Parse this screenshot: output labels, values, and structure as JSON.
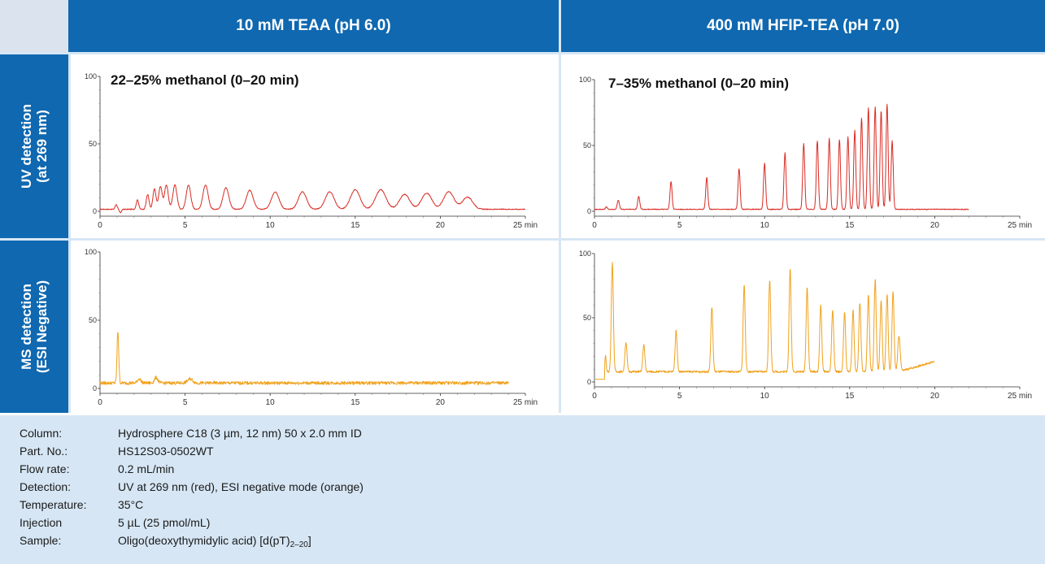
{
  "columns": [
    "10 mM TEAA (pH 6.0)",
    "400 mM HFIP-TEA (pH 7.0)"
  ],
  "rows": [
    {
      "line1": "UV detection",
      "line2": "(at 269 nm)"
    },
    {
      "line1": "MS detection",
      "line2": "(ESI Negative)"
    }
  ],
  "colors": {
    "uv": "#d92b23",
    "ms": "#f0a21d",
    "header_bg": "#0f68b0",
    "panel_frame": "#d6e6f4"
  },
  "chart_data": [
    {
      "id": "uv-teaa",
      "type": "line",
      "title": "22–25% methanol (0–20 min)",
      "xlim": [
        0,
        25
      ],
      "ylim": [
        0,
        100
      ],
      "xticks": [
        "0",
        "5",
        "10",
        "15",
        "20",
        "25 min"
      ],
      "yticks": [
        "0",
        "50",
        "100"
      ],
      "color": "uv",
      "x_end": 25,
      "baseline": 1.5,
      "noise": 0.3,
      "peaks": [
        {
          "t": 0.95,
          "h": 3.5,
          "w": 0.06
        },
        {
          "t": 1.2,
          "h": -2.5,
          "w": 0.06
        },
        {
          "t": 2.2,
          "h": 7,
          "w": 0.07
        },
        {
          "t": 2.8,
          "h": 11,
          "w": 0.08
        },
        {
          "t": 3.2,
          "h": 15,
          "w": 0.09
        },
        {
          "t": 3.55,
          "h": 17,
          "w": 0.1
        },
        {
          "t": 3.9,
          "h": 18,
          "w": 0.11
        },
        {
          "t": 4.4,
          "h": 18,
          "w": 0.12
        },
        {
          "t": 5.2,
          "h": 18,
          "w": 0.13
        },
        {
          "t": 6.2,
          "h": 18,
          "w": 0.15
        },
        {
          "t": 7.4,
          "h": 16,
          "w": 0.17
        },
        {
          "t": 8.8,
          "h": 14,
          "w": 0.2
        },
        {
          "t": 10.3,
          "h": 13,
          "w": 0.22
        },
        {
          "t": 11.9,
          "h": 13,
          "w": 0.24
        },
        {
          "t": 13.5,
          "h": 13,
          "w": 0.26
        },
        {
          "t": 15.0,
          "h": 14.5,
          "w": 0.28
        },
        {
          "t": 16.5,
          "h": 14.5,
          "w": 0.3
        },
        {
          "t": 17.9,
          "h": 11,
          "w": 0.3
        },
        {
          "t": 19.2,
          "h": 12,
          "w": 0.3
        },
        {
          "t": 20.5,
          "h": 13,
          "w": 0.3
        },
        {
          "t": 21.6,
          "h": 9,
          "w": 0.3
        }
      ]
    },
    {
      "id": "uv-hfip",
      "type": "line",
      "title": "7–35% methanol (0–20 min)",
      "xlim": [
        0,
        25
      ],
      "ylim": [
        0,
        100
      ],
      "xticks": [
        "0",
        "5",
        "10",
        "15",
        "20",
        "25 min"
      ],
      "yticks": [
        "0",
        "50",
        "100"
      ],
      "color": "uv",
      "x_end": 22,
      "baseline": 1.5,
      "noise": 0.3,
      "peaks": [
        {
          "t": 0.7,
          "h": 2,
          "w": 0.05
        },
        {
          "t": 1.4,
          "h": 7,
          "w": 0.06
        },
        {
          "t": 2.6,
          "h": 10,
          "w": 0.06
        },
        {
          "t": 4.5,
          "h": 21,
          "w": 0.06
        },
        {
          "t": 6.6,
          "h": 24,
          "w": 0.06
        },
        {
          "t": 8.5,
          "h": 31,
          "w": 0.06
        },
        {
          "t": 10.0,
          "h": 35,
          "w": 0.06
        },
        {
          "t": 11.2,
          "h": 43,
          "w": 0.06
        },
        {
          "t": 12.3,
          "h": 50,
          "w": 0.06
        },
        {
          "t": 13.1,
          "h": 52,
          "w": 0.06
        },
        {
          "t": 13.8,
          "h": 54,
          "w": 0.06
        },
        {
          "t": 14.4,
          "h": 53,
          "w": 0.06
        },
        {
          "t": 14.9,
          "h": 55,
          "w": 0.06
        },
        {
          "t": 15.3,
          "h": 60,
          "w": 0.06
        },
        {
          "t": 15.7,
          "h": 69,
          "w": 0.06
        },
        {
          "t": 16.1,
          "h": 77,
          "w": 0.06
        },
        {
          "t": 16.5,
          "h": 78,
          "w": 0.06
        },
        {
          "t": 16.85,
          "h": 75,
          "w": 0.06
        },
        {
          "t": 17.2,
          "h": 80,
          "w": 0.06
        },
        {
          "t": 17.5,
          "h": 52,
          "w": 0.06
        }
      ]
    },
    {
      "id": "ms-teaa",
      "type": "line",
      "title": "",
      "xlim": [
        0,
        25
      ],
      "ylim": [
        0,
        100
      ],
      "xticks": [
        "0",
        "5",
        "10",
        "15",
        "20",
        "25 min"
      ],
      "yticks": [
        "0",
        "50",
        "100"
      ],
      "color": "ms",
      "x_end": 24,
      "baseline": 4,
      "noise": 1.2,
      "peaks": [
        {
          "t": 1.05,
          "h": 38,
          "w": 0.05
        },
        {
          "t": 2.3,
          "h": 3,
          "w": 0.1
        },
        {
          "t": 3.3,
          "h": 4,
          "w": 0.1
        },
        {
          "t": 5.3,
          "h": 3,
          "w": 0.15
        }
      ]
    },
    {
      "id": "ms-hfip",
      "type": "line",
      "title": "",
      "xlim": [
        0,
        25
      ],
      "ylim": [
        0,
        100
      ],
      "xticks": [
        "0",
        "5",
        "10",
        "15",
        "20",
        "25 min"
      ],
      "yticks": [
        "0",
        "50",
        "100"
      ],
      "color": "ms",
      "x_end": 20,
      "baseline": 8,
      "noise": 0.8,
      "tail_rise": [
        17.9,
        20,
        18
      ],
      "peaks": [
        {
          "t": 0.65,
          "h": 12,
          "w": 0.04
        },
        {
          "t": 1.05,
          "h": 85,
          "w": 0.06
        },
        {
          "t": 1.85,
          "h": 23,
          "w": 0.06
        },
        {
          "t": 2.9,
          "h": 21,
          "w": 0.06
        },
        {
          "t": 4.8,
          "h": 32,
          "w": 0.06
        },
        {
          "t": 6.9,
          "h": 50,
          "w": 0.06
        },
        {
          "t": 8.8,
          "h": 68,
          "w": 0.06
        },
        {
          "t": 10.3,
          "h": 72,
          "w": 0.06
        },
        {
          "t": 11.5,
          "h": 80,
          "w": 0.06
        },
        {
          "t": 12.5,
          "h": 66,
          "w": 0.06
        },
        {
          "t": 13.3,
          "h": 52,
          "w": 0.06
        },
        {
          "t": 14.0,
          "h": 48,
          "w": 0.06
        },
        {
          "t": 14.7,
          "h": 46,
          "w": 0.06
        },
        {
          "t": 15.2,
          "h": 48,
          "w": 0.06
        },
        {
          "t": 15.6,
          "h": 54,
          "w": 0.06
        },
        {
          "t": 16.1,
          "h": 60,
          "w": 0.06
        },
        {
          "t": 16.5,
          "h": 72,
          "w": 0.06
        },
        {
          "t": 16.85,
          "h": 55,
          "w": 0.06
        },
        {
          "t": 17.2,
          "h": 60,
          "w": 0.06
        },
        {
          "t": 17.55,
          "h": 62,
          "w": 0.06
        },
        {
          "t": 17.9,
          "h": 28,
          "w": 0.07
        }
      ]
    }
  ],
  "info": [
    {
      "label": "Column:",
      "value": "Hydrosphere C18 (3 µm, 12 nm) 50 x 2.0 mm ID"
    },
    {
      "label": "Part. No.:",
      "value": "HS12S03-0502WT"
    },
    {
      "label": "Flow rate:",
      "value": "0.2 mL/min"
    },
    {
      "label": "Detection:",
      "value": "UV at 269 nm (red), ESI negative mode (orange)"
    },
    {
      "label": "Temperature:",
      "value": "35°C"
    },
    {
      "label": "Injection",
      "value": "5 µL (25 pmol/mL)"
    },
    {
      "label": "Sample:",
      "value": "Oligo(deoxythymidylic acid) [d(pT)",
      "sub": "2–20",
      "suffix": "]"
    }
  ]
}
